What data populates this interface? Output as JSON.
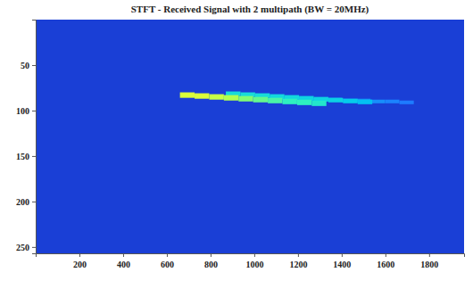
{
  "chart_data": {
    "type": "heatmap",
    "title": "STFT - Received Signal with 2 multipath (BW = 20MHz)",
    "xlim": [
      0,
      1960
    ],
    "xticks": [
      200,
      400,
      600,
      800,
      1000,
      1200,
      1400,
      1600,
      1800
    ],
    "ylim": [
      0,
      257
    ],
    "yticks": [
      50,
      100,
      150,
      200,
      250
    ],
    "color_range": [
      0,
      1
    ],
    "cells": [
      {
        "x0": 1070,
        "x1": 1136,
        "y0": 84,
        "y1": 88,
        "value": 0.3
      },
      {
        "x0": 1136,
        "x1": 1202,
        "y0": 85,
        "y1": 89,
        "value": 0.3
      },
      {
        "x0": 1202,
        "x1": 1268,
        "y0": 85,
        "y1": 89,
        "value": 0.3
      },
      {
        "x0": 1268,
        "x1": 1334,
        "y0": 86,
        "y1": 90,
        "value": 0.28
      },
      {
        "x0": 1334,
        "x1": 1400,
        "y0": 86,
        "y1": 90,
        "value": 0.28
      },
      {
        "x0": 1400,
        "x1": 1466,
        "y0": 87,
        "y1": 91,
        "value": 0.27
      },
      {
        "x0": 1466,
        "x1": 1532,
        "y0": 87,
        "y1": 91,
        "value": 0.26
      },
      {
        "x0": 1532,
        "x1": 1598,
        "y0": 88,
        "y1": 92,
        "value": 0.25
      },
      {
        "x0": 1598,
        "x1": 1664,
        "y0": 88,
        "y1": 92,
        "value": 0.22
      },
      {
        "x0": 1664,
        "x1": 1730,
        "y0": 89,
        "y1": 93,
        "value": 0.2
      },
      {
        "x0": 870,
        "x1": 937,
        "y0": 79,
        "y1": 84,
        "value": 0.5
      },
      {
        "x0": 937,
        "x1": 1004,
        "y0": 80,
        "y1": 85,
        "value": 0.5
      },
      {
        "x0": 1004,
        "x1": 1071,
        "y0": 81,
        "y1": 86,
        "value": 0.5
      },
      {
        "x0": 1071,
        "x1": 1138,
        "y0": 82,
        "y1": 87,
        "value": 0.48
      },
      {
        "x0": 1138,
        "x1": 1205,
        "y0": 83,
        "y1": 88,
        "value": 0.48
      },
      {
        "x0": 1205,
        "x1": 1272,
        "y0": 84,
        "y1": 89,
        "value": 0.46
      },
      {
        "x0": 1272,
        "x1": 1339,
        "y0": 85,
        "y1": 90,
        "value": 0.46
      },
      {
        "x0": 1339,
        "x1": 1406,
        "y0": 86,
        "y1": 91,
        "value": 0.45
      },
      {
        "x0": 1406,
        "x1": 1473,
        "y0": 87,
        "y1": 92,
        "value": 0.42
      },
      {
        "x0": 1473,
        "x1": 1540,
        "y0": 88,
        "y1": 93,
        "value": 0.38
      },
      {
        "x0": 660,
        "x1": 727,
        "y0": 80,
        "y1": 86,
        "value": 0.95
      },
      {
        "x0": 727,
        "x1": 794,
        "y0": 81,
        "y1": 87,
        "value": 0.95
      },
      {
        "x0": 794,
        "x1": 861,
        "y0": 82,
        "y1": 88,
        "value": 0.9
      },
      {
        "x0": 861,
        "x1": 928,
        "y0": 83,
        "y1": 89,
        "value": 0.85
      },
      {
        "x0": 928,
        "x1": 995,
        "y0": 84,
        "y1": 90,
        "value": 0.75
      },
      {
        "x0": 995,
        "x1": 1062,
        "y0": 85,
        "y1": 91,
        "value": 0.7
      },
      {
        "x0": 1062,
        "x1": 1129,
        "y0": 86,
        "y1": 92,
        "value": 0.65
      },
      {
        "x0": 1129,
        "x1": 1196,
        "y0": 87,
        "y1": 93,
        "value": 0.6
      },
      {
        "x0": 1196,
        "x1": 1263,
        "y0": 88,
        "y1": 94,
        "value": 0.6
      },
      {
        "x0": 1263,
        "x1": 1330,
        "y0": 89,
        "y1": 95,
        "value": 0.55
      }
    ]
  }
}
